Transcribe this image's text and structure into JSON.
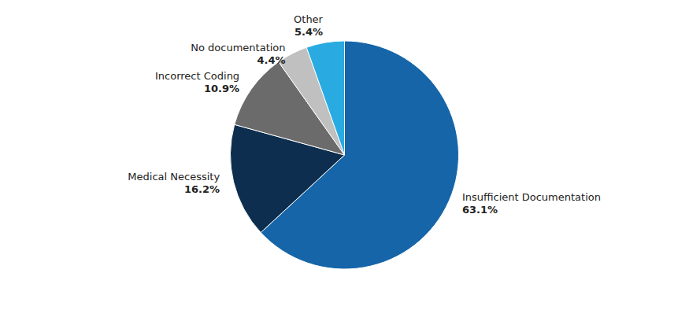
{
  "chart_data": {
    "type": "pie",
    "categories": [
      "Insufficient Documentation",
      "Medical Necessity",
      "Incorrect Coding",
      "No documentation",
      "Other"
    ],
    "values": [
      63.1,
      16.2,
      10.9,
      4.4,
      5.4
    ],
    "value_labels": [
      "63.1%",
      "16.2%",
      "10.9%",
      "4.4%",
      "5.4%"
    ],
    "colors": [
      "#1565a8",
      "#0d2e4e",
      "#6b6b6b",
      "#c0c0c0",
      "#29abe2"
    ],
    "data_labels": true
  }
}
